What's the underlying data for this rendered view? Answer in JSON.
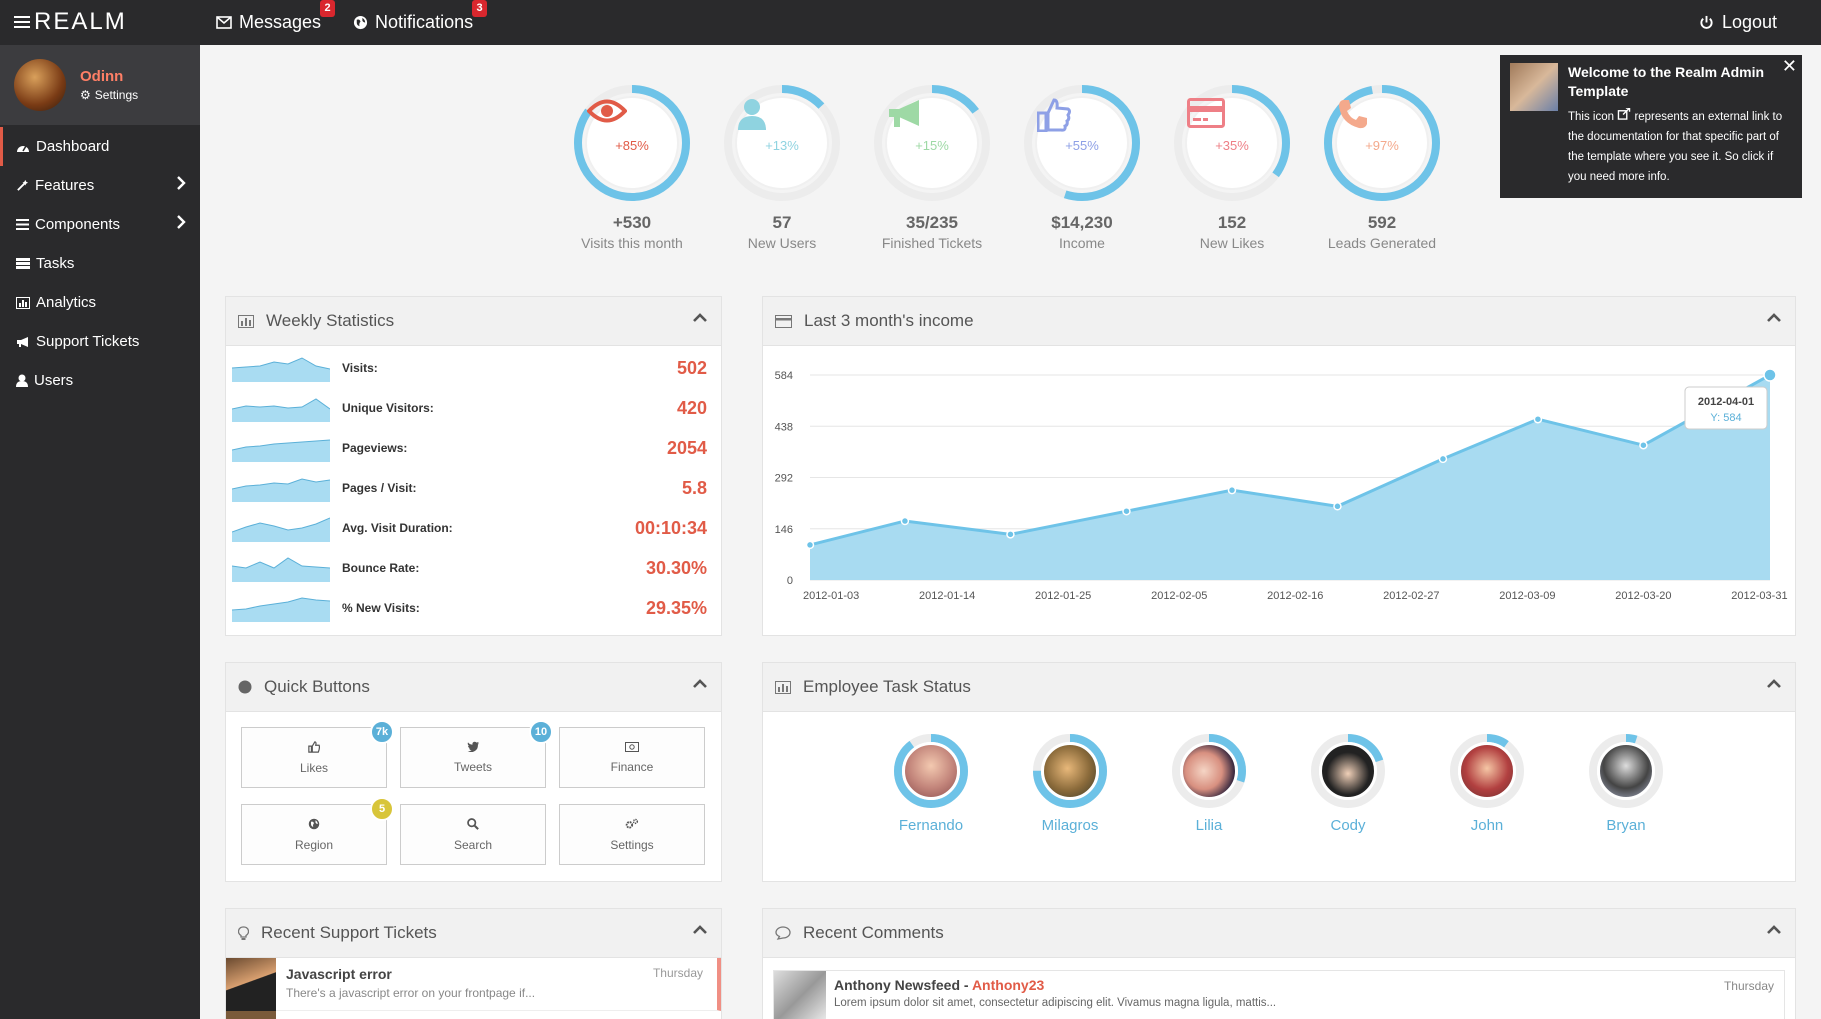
{
  "brand": "REALM",
  "topbar": {
    "messages_label": "Messages",
    "messages_count": "2",
    "notifications_label": "Notifications",
    "notifications_count": "3",
    "logout_label": "Logout"
  },
  "profile": {
    "name": "Odinn",
    "settings_label": "Settings"
  },
  "sidebar": {
    "items": [
      {
        "label": "Dashboard"
      },
      {
        "label": "Features"
      },
      {
        "label": "Components"
      },
      {
        "label": "Tasks"
      },
      {
        "label": "Analytics"
      },
      {
        "label": "Support Tickets"
      },
      {
        "label": "Users"
      }
    ]
  },
  "stats": [
    {
      "value": "+530",
      "label": "Visits this month",
      "pct": "+85%",
      "fill": 0.85,
      "icon": "eye-icon",
      "color": "#e15b47",
      "ring": "#6ec3e8"
    },
    {
      "value": "57",
      "label": "New Users",
      "pct": "+13%",
      "fill": 0.13,
      "icon": "user-icon",
      "color": "#8fd3e0",
      "ring": "#6ec3e8"
    },
    {
      "value": "35/235",
      "label": "Finished Tickets",
      "pct": "+15%",
      "fill": 0.15,
      "icon": "megaphone-icon",
      "color": "#9ed9a5",
      "ring": "#6ec3e8"
    },
    {
      "value": "$14,230",
      "label": "Income",
      "pct": "+55%",
      "fill": 0.55,
      "icon": "thumbs-up-icon",
      "color": "#8ea0e6",
      "ring": "#6ec3e8"
    },
    {
      "value": "152",
      "label": "New Likes",
      "pct": "+35%",
      "fill": 0.35,
      "icon": "credit-card-icon",
      "color": "#ee7f86",
      "ring": "#6ec3e8"
    },
    {
      "value": "592",
      "label": "Leads Generated",
      "pct": "+97%",
      "fill": 0.97,
      "icon": "phone-icon",
      "color": "#f4a98c",
      "ring": "#6ec3e8"
    }
  ],
  "welcome": {
    "title": "Welcome to the Realm Admin Template",
    "text_before": "This icon",
    "text_after": "represents an external link to the documentation for that specific part of the template where you see it. So click if you need more info."
  },
  "weekly": {
    "title": "Weekly Statistics",
    "rows": [
      {
        "label": "Visits:",
        "value": "502"
      },
      {
        "label": "Unique Visitors:",
        "value": "420"
      },
      {
        "label": "Pageviews:",
        "value": "2054"
      },
      {
        "label": "Pages / Visit:",
        "value": "5.8"
      },
      {
        "label": "Avg. Visit Duration:",
        "value": "00:10:34"
      },
      {
        "label": "Bounce Rate:",
        "value": "30.30%"
      },
      {
        "label": "% New Visits:",
        "value": "29.35%"
      }
    ]
  },
  "income": {
    "title": "Last 3 month's income",
    "tooltip_date": "2012-04-01",
    "tooltip_value": "Y: 584"
  },
  "chart_data": {
    "type": "area",
    "title": "Last 3 month's income",
    "x": [
      "2012-01-01",
      "2012-01-10",
      "2012-01-20",
      "2012-01-31",
      "2012-02-10",
      "2012-02-20",
      "2012-03-01",
      "2012-03-10",
      "2012-03-20",
      "2012-04-01"
    ],
    "values": [
      100,
      168,
      130,
      196,
      256,
      210,
      345,
      458,
      384,
      584
    ],
    "xticks": [
      "2012-01-03",
      "2012-01-14",
      "2012-01-25",
      "2012-02-05",
      "2012-02-16",
      "2012-02-27",
      "2012-03-09",
      "2012-03-20",
      "2012-03-31"
    ],
    "yticks": [
      "0",
      "146",
      "292",
      "438",
      "584"
    ],
    "ylim": [
      0,
      584
    ],
    "grid": true,
    "color": "#6ec3e8"
  },
  "quick": {
    "title": "Quick Buttons",
    "buttons": [
      {
        "label": "Likes",
        "badge": "7k",
        "badge_color": "#5bb0d8",
        "icon": "thumbs-up-icon"
      },
      {
        "label": "Tweets",
        "badge": "10",
        "badge_color": "#5bb0d8",
        "icon": "twitter-icon"
      },
      {
        "label": "Finance",
        "badge": "",
        "icon": "money-icon"
      },
      {
        "label": "Region",
        "badge": "5",
        "badge_color": "#d8c53a",
        "icon": "globe-icon"
      },
      {
        "label": "Search",
        "badge": "",
        "icon": "search-icon"
      },
      {
        "label": "Settings",
        "badge": "",
        "icon": "gears-icon"
      }
    ]
  },
  "employees": {
    "title": "Employee Task Status",
    "people": [
      {
        "name": "Fernando",
        "fill": 0.9
      },
      {
        "name": "Milagros",
        "fill": 0.75
      },
      {
        "name": "Lilia",
        "fill": 0.3
      },
      {
        "name": "Cody",
        "fill": 0.2
      },
      {
        "name": "John",
        "fill": 0.1
      },
      {
        "name": "Bryan",
        "fill": 0.05
      }
    ]
  },
  "tickets": {
    "title": "Recent Support Tickets",
    "items": [
      {
        "title": "Javascript error",
        "desc": "There's a javascript error on your frontpage if...",
        "date": "Thursday"
      }
    ]
  },
  "comments": {
    "title": "Recent Comments",
    "items": [
      {
        "author": "Anthony Newsfeed",
        "sep": " - ",
        "user": "Anthony23",
        "text": "Lorem ipsum dolor sit amet, consectetur adipiscing elit. Vivamus magna ligula, mattis...",
        "date": "Thursday"
      }
    ]
  }
}
